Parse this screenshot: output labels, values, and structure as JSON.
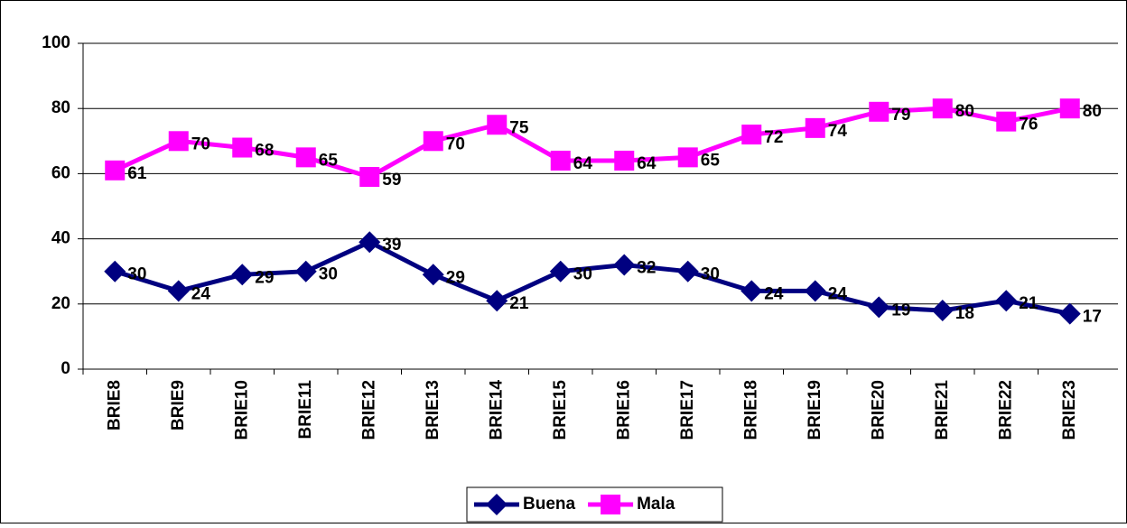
{
  "chart_data": {
    "type": "line",
    "categories": [
      "BRIE8",
      "BRIE9",
      "BRIE10",
      "BRIE11",
      "BRIE12",
      "BRIE13",
      "BRIE14",
      "BRIE15",
      "BRIE16",
      "BRIE17",
      "BRIE18",
      "BRIE19",
      "BRIE20",
      "BRIE21",
      "BRIE22",
      "BRIE23"
    ],
    "series": [
      {
        "name": "Buena",
        "color": "#000080",
        "marker": "diamond",
        "values": [
          30,
          24,
          29,
          30,
          39,
          29,
          21,
          30,
          32,
          30,
          24,
          24,
          19,
          18,
          21,
          17
        ]
      },
      {
        "name": "Mala",
        "color": "#ff00ff",
        "marker": "square",
        "values": [
          61,
          70,
          68,
          65,
          59,
          70,
          75,
          64,
          64,
          65,
          72,
          74,
          79,
          80,
          76,
          80
        ]
      }
    ],
    "ylim": [
      0,
      100
    ],
    "yticks": [
      0,
      20,
      40,
      60,
      80,
      100
    ],
    "grid": true,
    "legend": "bottom"
  }
}
